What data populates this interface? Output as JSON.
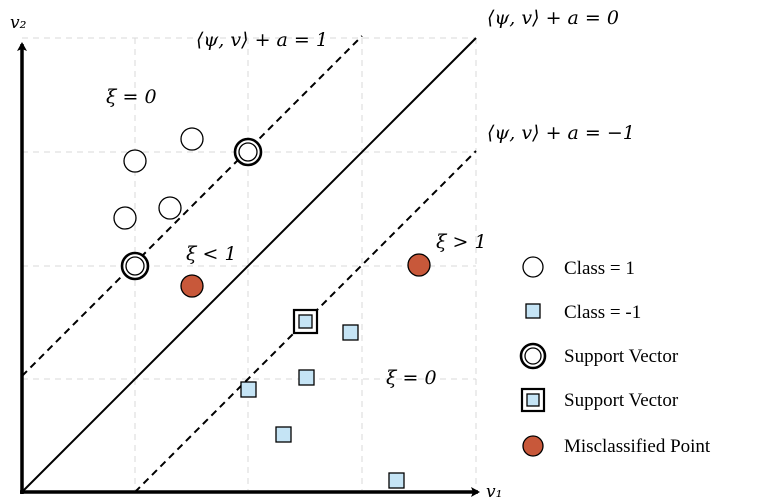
{
  "axes": {
    "x_label": "v₁",
    "y_label": "v₂"
  },
  "labels": {
    "upper_margin": "⟨ψ, v⟩ + a = 1",
    "decision_boundary": "⟨ψ, v⟩ + a = 0",
    "lower_margin": "⟨ψ, v⟩ + a = −1",
    "xi_zero_top": "ξ = 0",
    "xi_less_one": "ξ < 1",
    "xi_greater_one": "ξ > 1",
    "xi_zero_bottom": "ξ = 0"
  },
  "legend": {
    "items": [
      {
        "icon": "open-circle-icon",
        "label": "Class = 1"
      },
      {
        "icon": "blue-square-icon",
        "label": "Class = -1"
      },
      {
        "icon": "double-circle-icon",
        "label": "Support Vector"
      },
      {
        "icon": "double-square-icon",
        "label": "Support Vector"
      },
      {
        "icon": "red-circle-icon",
        "label": "Misclassified Point"
      }
    ]
  },
  "colors": {
    "square_fill": "#c5e4f5",
    "misclassified_fill": "#c8583a",
    "grid": "#d9d9d9",
    "line": "#000000"
  }
}
